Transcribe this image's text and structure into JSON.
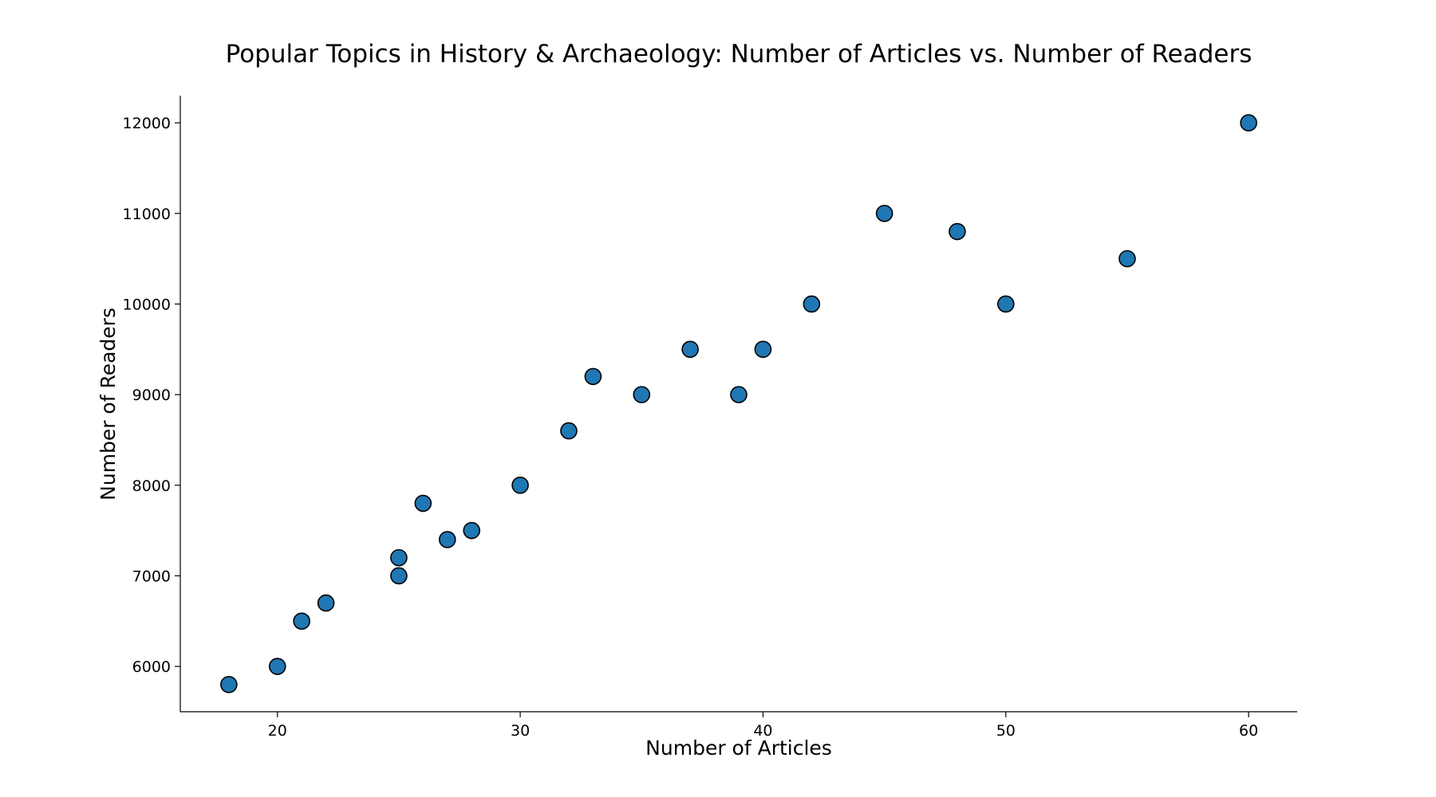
{
  "chart_data": {
    "type": "scatter",
    "title": "Popular Topics in History & Archaeology: Number of Articles vs. Number of Readers",
    "xlabel": "Number of Articles",
    "ylabel": "Number of Readers",
    "xlim": [
      16,
      62
    ],
    "ylim": [
      5500,
      12300
    ],
    "xticks": [
      20,
      30,
      40,
      50,
      60
    ],
    "yticks": [
      6000,
      7000,
      8000,
      9000,
      10000,
      11000,
      12000
    ],
    "grid": false,
    "marker_color": "#1f77b4",
    "marker_edge_color": "#000000",
    "points": [
      {
        "x": 18,
        "y": 5800
      },
      {
        "x": 20,
        "y": 6000
      },
      {
        "x": 21,
        "y": 6500
      },
      {
        "x": 22,
        "y": 6700
      },
      {
        "x": 25,
        "y": 7000
      },
      {
        "x": 25,
        "y": 7200
      },
      {
        "x": 26,
        "y": 7800
      },
      {
        "x": 27,
        "y": 7400
      },
      {
        "x": 28,
        "y": 7500
      },
      {
        "x": 30,
        "y": 8000
      },
      {
        "x": 32,
        "y": 8600
      },
      {
        "x": 33,
        "y": 9200
      },
      {
        "x": 35,
        "y": 9000
      },
      {
        "x": 37,
        "y": 9500
      },
      {
        "x": 39,
        "y": 9000
      },
      {
        "x": 40,
        "y": 9500
      },
      {
        "x": 42,
        "y": 10000
      },
      {
        "x": 45,
        "y": 11000
      },
      {
        "x": 48,
        "y": 10800
      },
      {
        "x": 50,
        "y": 10000
      },
      {
        "x": 55,
        "y": 10500
      },
      {
        "x": 60,
        "y": 12000
      }
    ]
  }
}
